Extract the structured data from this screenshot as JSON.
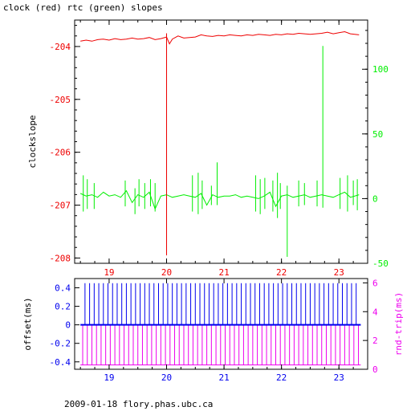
{
  "title": "clock (red) rtc (green) slopes",
  "footer": "2009-01-18 flory.phas.ubc.ca",
  "colors": {
    "red": "#ee0000",
    "green": "#00ee00",
    "blue": "#0000ee",
    "magenta": "#ee00ee",
    "axis": "#000000"
  },
  "chart_data": [
    {
      "type": "line",
      "ylabel": "clockslope",
      "xlim": [
        18.4,
        23.5
      ],
      "x_ticks": [
        "19",
        "20",
        "21",
        "22",
        "23"
      ],
      "x_tick_values": [
        19,
        20,
        21,
        22,
        23
      ],
      "left_axis": {
        "ylim": [
          -208.1,
          -203.5
        ],
        "ticks": [
          -204,
          -205,
          -206,
          -207,
          -208
        ],
        "tick_labels": [
          "-204",
          "-205",
          "-206",
          "-207",
          "-208"
        ],
        "color": "#ee0000"
      },
      "right_axis": {
        "ylim": [
          -50,
          138
        ],
        "ticks": [
          100,
          50,
          0,
          -50
        ],
        "tick_labels": [
          "100",
          "50",
          "0",
          "-50"
        ],
        "color": "#00ee00"
      },
      "series": [
        {
          "color": "#ee0000",
          "axis": "left",
          "x": [
            18.5,
            18.6,
            18.7,
            18.8,
            18.9,
            19.0,
            19.1,
            19.2,
            19.3,
            19.4,
            19.5,
            19.6,
            19.7,
            19.8,
            19.9,
            20.0,
            20.05,
            20.1,
            20.2,
            20.3,
            20.4,
            20.5,
            20.6,
            20.7,
            20.8,
            20.9,
            21.0,
            21.1,
            21.2,
            21.3,
            21.4,
            21.5,
            21.6,
            21.7,
            21.8,
            21.9,
            22.0,
            22.1,
            22.2,
            22.3,
            22.4,
            22.5,
            22.6,
            22.7,
            22.8,
            22.9,
            23.0,
            23.1,
            23.2,
            23.35
          ],
          "y": [
            -203.9,
            -203.88,
            -203.9,
            -203.87,
            -203.86,
            -203.88,
            -203.85,
            -203.87,
            -203.86,
            -203.84,
            -203.86,
            -203.85,
            -203.83,
            -203.87,
            -203.85,
            -203.82,
            -203.95,
            -203.86,
            -203.8,
            -203.84,
            -203.83,
            -203.82,
            -203.78,
            -203.8,
            -203.81,
            -203.79,
            -203.8,
            -203.78,
            -203.79,
            -203.8,
            -203.78,
            -203.79,
            -203.77,
            -203.78,
            -203.79,
            -203.77,
            -203.78,
            -203.76,
            -203.77,
            -203.75,
            -203.76,
            -203.77,
            -203.76,
            -203.75,
            -203.73,
            -203.76,
            -203.74,
            -203.72,
            -203.76,
            -203.78
          ]
        },
        {
          "color": "#00ee00",
          "axis": "right",
          "x": [
            18.5,
            18.6,
            18.7,
            18.8,
            18.9,
            19.0,
            19.1,
            19.2,
            19.3,
            19.4,
            19.5,
            19.6,
            19.7,
            19.8,
            19.9,
            20.0,
            20.1,
            20.2,
            20.3,
            20.4,
            20.5,
            20.6,
            20.7,
            20.8,
            20.9,
            21.0,
            21.1,
            21.2,
            21.3,
            21.4,
            21.5,
            21.6,
            21.7,
            21.8,
            21.9,
            22.0,
            22.1,
            22.2,
            22.3,
            22.4,
            22.5,
            22.6,
            22.7,
            22.8,
            22.9,
            23.0,
            23.1,
            23.2,
            23.35
          ],
          "y": [
            4,
            2,
            3,
            1,
            5,
            2,
            3,
            1,
            6,
            -3,
            3,
            1,
            5,
            -8,
            2,
            3,
            1,
            2,
            3,
            2,
            1,
            4,
            -5,
            3,
            1,
            2,
            2,
            3,
            1,
            2,
            1,
            0,
            2,
            5,
            -6,
            2,
            3,
            1,
            2,
            3,
            1,
            2,
            3,
            2,
            1,
            3,
            5,
            1,
            3
          ]
        }
      ],
      "spikes": [
        {
          "color": "#ee0000",
          "axis": "left",
          "x": 20.0,
          "y": [
            -203.75,
            -207.95
          ]
        },
        {
          "color": "#00ee00",
          "axis": "right",
          "x": 22.72,
          "y": [
            -7,
            118
          ]
        },
        {
          "color": "#00ee00",
          "axis": "right",
          "x": 22.1,
          "y": [
            -45,
            10
          ]
        },
        {
          "color": "#00ee00",
          "axis": "right",
          "x": 20.88,
          "y": [
            -5,
            28
          ]
        },
        {
          "color": "#00ee00",
          "axis": "right",
          "x": 18.55,
          "y": [
            -10,
            18
          ]
        },
        {
          "color": "#00ee00",
          "axis": "right",
          "x": 18.62,
          "y": [
            -8,
            15
          ]
        },
        {
          "color": "#00ee00",
          "axis": "right",
          "x": 18.74,
          "y": [
            -8,
            12
          ]
        },
        {
          "color": "#00ee00",
          "axis": "right",
          "x": 19.28,
          "y": [
            -6,
            14
          ]
        },
        {
          "color": "#00ee00",
          "axis": "right",
          "x": 19.45,
          "y": [
            -12,
            8
          ]
        },
        {
          "color": "#00ee00",
          "axis": "right",
          "x": 19.52,
          "y": [
            -6,
            15
          ]
        },
        {
          "color": "#00ee00",
          "axis": "right",
          "x": 19.62,
          "y": [
            -8,
            12
          ]
        },
        {
          "color": "#00ee00",
          "axis": "right",
          "x": 19.72,
          "y": [
            -6,
            15
          ]
        },
        {
          "color": "#00ee00",
          "axis": "right",
          "x": 19.8,
          "y": [
            -10,
            12
          ]
        },
        {
          "color": "#00ee00",
          "axis": "right",
          "x": 20.45,
          "y": [
            -10,
            18
          ]
        },
        {
          "color": "#00ee00",
          "axis": "right",
          "x": 20.55,
          "y": [
            -12,
            20
          ]
        },
        {
          "color": "#00ee00",
          "axis": "right",
          "x": 20.62,
          "y": [
            -8,
            14
          ]
        },
        {
          "color": "#00ee00",
          "axis": "right",
          "x": 20.78,
          "y": [
            -5,
            10
          ]
        },
        {
          "color": "#00ee00",
          "axis": "right",
          "x": 21.55,
          "y": [
            -10,
            18
          ]
        },
        {
          "color": "#00ee00",
          "axis": "right",
          "x": 21.63,
          "y": [
            -12,
            15
          ]
        },
        {
          "color": "#00ee00",
          "axis": "right",
          "x": 21.71,
          "y": [
            -8,
            16
          ]
        },
        {
          "color": "#00ee00",
          "axis": "right",
          "x": 21.85,
          "y": [
            -10,
            14
          ]
        },
        {
          "color": "#00ee00",
          "axis": "right",
          "x": 21.93,
          "y": [
            -15,
            20
          ]
        },
        {
          "color": "#00ee00",
          "axis": "right",
          "x": 21.98,
          "y": [
            -8,
            12
          ]
        },
        {
          "color": "#00ee00",
          "axis": "right",
          "x": 22.3,
          "y": [
            -6,
            14
          ]
        },
        {
          "color": "#00ee00",
          "axis": "right",
          "x": 22.4,
          "y": [
            -5,
            12
          ]
        },
        {
          "color": "#00ee00",
          "axis": "right",
          "x": 22.62,
          "y": [
            -6,
            14
          ]
        },
        {
          "color": "#00ee00",
          "axis": "right",
          "x": 23.02,
          "y": [
            -8,
            16
          ]
        },
        {
          "color": "#00ee00",
          "axis": "right",
          "x": 23.15,
          "y": [
            -10,
            18
          ]
        },
        {
          "color": "#00ee00",
          "axis": "right",
          "x": 23.25,
          "y": [
            -5,
            14
          ]
        },
        {
          "color": "#00ee00",
          "axis": "right",
          "x": 23.32,
          "y": [
            -9,
            15
          ]
        }
      ]
    },
    {
      "type": "line",
      "ylabel": "offset(ms)",
      "y2label": "rnd-trip(ms)",
      "xlim": [
        18.4,
        23.5
      ],
      "x_ticks": [
        "19",
        "20",
        "21",
        "22",
        "23"
      ],
      "x_tick_values": [
        19,
        20,
        21,
        22,
        23
      ],
      "left_axis": {
        "ylim": [
          -0.48,
          0.5
        ],
        "ticks": [
          0.4,
          0.2,
          0,
          -0.2,
          -0.4
        ],
        "tick_labels": [
          "0.4",
          "0.2",
          "0",
          "-0.2",
          "-0.4"
        ],
        "color": "#0000ee"
      },
      "right_axis": {
        "ylim": [
          0,
          6.3
        ],
        "ticks": [
          6,
          4,
          2,
          0
        ],
        "tick_labels": [
          "6",
          "4",
          "2",
          "0"
        ],
        "color": "#ee00ee"
      },
      "offset_baseline": 0.0,
      "offset_spike_x": [
        18.58,
        18.66,
        18.74,
        18.82,
        18.9,
        18.98,
        19.06,
        19.14,
        19.22,
        19.3,
        19.38,
        19.46,
        19.54,
        19.62,
        19.7,
        19.78,
        19.86,
        19.94,
        20.02,
        20.1,
        20.18,
        20.26,
        20.34,
        20.42,
        20.5,
        20.58,
        20.66,
        20.74,
        20.82,
        20.9,
        20.98,
        21.06,
        21.14,
        21.22,
        21.3,
        21.38,
        21.46,
        21.54,
        21.62,
        21.7,
        21.78,
        21.86,
        21.94,
        22.02,
        22.1,
        22.18,
        22.26,
        22.34,
        22.42,
        22.5,
        22.58,
        22.66,
        22.74,
        22.82,
        22.9,
        22.98,
        23.06,
        23.14,
        23.22,
        23.3
      ],
      "offset_spike_top": 0.45,
      "roundtrip_baseline": 0.3,
      "roundtrip_spike_top": 3.05,
      "roundtrip_spike_x": [
        18.54,
        18.62,
        18.7,
        18.78,
        18.86,
        18.94,
        19.02,
        19.1,
        19.18,
        19.26,
        19.34,
        19.42,
        19.5,
        19.58,
        19.66,
        19.74,
        19.82,
        19.9,
        19.98,
        20.06,
        20.14,
        20.22,
        20.3,
        20.38,
        20.46,
        20.54,
        20.62,
        20.7,
        20.78,
        20.86,
        20.94,
        21.02,
        21.1,
        21.18,
        21.26,
        21.34,
        21.42,
        21.5,
        21.58,
        21.66,
        21.74,
        21.82,
        21.9,
        21.98,
        22.06,
        22.14,
        22.22,
        22.3,
        22.38,
        22.46,
        22.54,
        22.62,
        22.7,
        22.78,
        22.86,
        22.94,
        23.02,
        23.1,
        23.18,
        23.26,
        23.34
      ]
    }
  ]
}
